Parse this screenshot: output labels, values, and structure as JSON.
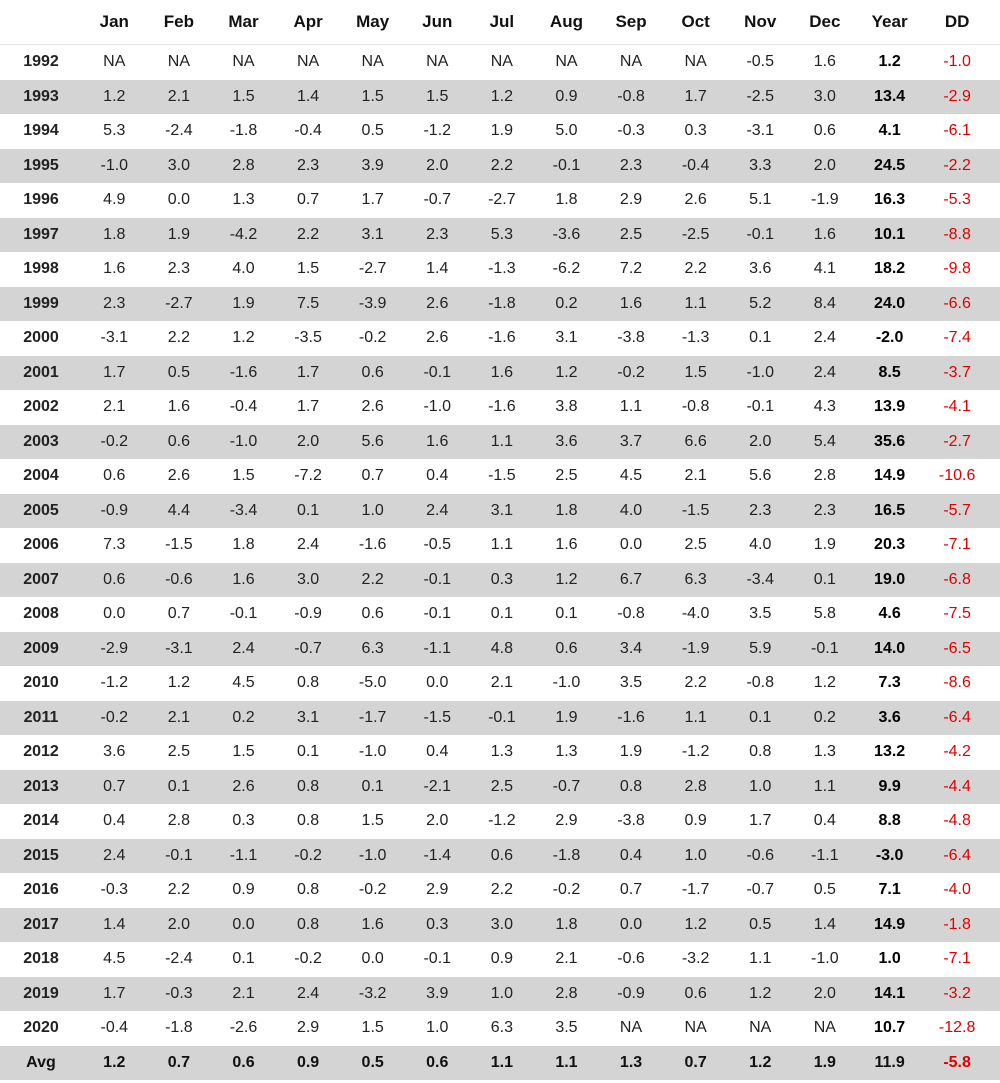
{
  "columns": [
    "",
    "Jan",
    "Feb",
    "Mar",
    "Apr",
    "May",
    "Jun",
    "Jul",
    "Aug",
    "Sep",
    "Oct",
    "Nov",
    "Dec",
    "Year",
    "DD"
  ],
  "rows": [
    {
      "label": "1992",
      "months": [
        "NA",
        "NA",
        "NA",
        "NA",
        "NA",
        "NA",
        "NA",
        "NA",
        "NA",
        "NA",
        "-0.5",
        "1.6"
      ],
      "year": "1.2",
      "dd": "-1.0"
    },
    {
      "label": "1993",
      "months": [
        "1.2",
        "2.1",
        "1.5",
        "1.4",
        "1.5",
        "1.5",
        "1.2",
        "0.9",
        "-0.8",
        "1.7",
        "-2.5",
        "3.0"
      ],
      "year": "13.4",
      "dd": "-2.9"
    },
    {
      "label": "1994",
      "months": [
        "5.3",
        "-2.4",
        "-1.8",
        "-0.4",
        "0.5",
        "-1.2",
        "1.9",
        "5.0",
        "-0.3",
        "0.3",
        "-3.1",
        "0.6"
      ],
      "year": "4.1",
      "dd": "-6.1"
    },
    {
      "label": "1995",
      "months": [
        "-1.0",
        "3.0",
        "2.8",
        "2.3",
        "3.9",
        "2.0",
        "2.2",
        "-0.1",
        "2.3",
        "-0.4",
        "3.3",
        "2.0"
      ],
      "year": "24.5",
      "dd": "-2.2"
    },
    {
      "label": "1996",
      "months": [
        "4.9",
        "0.0",
        "1.3",
        "0.7",
        "1.7",
        "-0.7",
        "-2.7",
        "1.8",
        "2.9",
        "2.6",
        "5.1",
        "-1.9"
      ],
      "year": "16.3",
      "dd": "-5.3"
    },
    {
      "label": "1997",
      "months": [
        "1.8",
        "1.9",
        "-4.2",
        "2.2",
        "3.1",
        "2.3",
        "5.3",
        "-3.6",
        "2.5",
        "-2.5",
        "-0.1",
        "1.6"
      ],
      "year": "10.1",
      "dd": "-8.8"
    },
    {
      "label": "1998",
      "months": [
        "1.6",
        "2.3",
        "4.0",
        "1.5",
        "-2.7",
        "1.4",
        "-1.3",
        "-6.2",
        "7.2",
        "2.2",
        "3.6",
        "4.1"
      ],
      "year": "18.2",
      "dd": "-9.8"
    },
    {
      "label": "1999",
      "months": [
        "2.3",
        "-2.7",
        "1.9",
        "7.5",
        "-3.9",
        "2.6",
        "-1.8",
        "0.2",
        "1.6",
        "1.1",
        "5.2",
        "8.4"
      ],
      "year": "24.0",
      "dd": "-6.6"
    },
    {
      "label": "2000",
      "months": [
        "-3.1",
        "2.2",
        "1.2",
        "-3.5",
        "-0.2",
        "2.6",
        "-1.6",
        "3.1",
        "-3.8",
        "-1.3",
        "0.1",
        "2.4"
      ],
      "year": "-2.0",
      "dd": "-7.4"
    },
    {
      "label": "2001",
      "months": [
        "1.7",
        "0.5",
        "-1.6",
        "1.7",
        "0.6",
        "-0.1",
        "1.6",
        "1.2",
        "-0.2",
        "1.5",
        "-1.0",
        "2.4"
      ],
      "year": "8.5",
      "dd": "-3.7"
    },
    {
      "label": "2002",
      "months": [
        "2.1",
        "1.6",
        "-0.4",
        "1.7",
        "2.6",
        "-1.0",
        "-1.6",
        "3.8",
        "1.1",
        "-0.8",
        "-0.1",
        "4.3"
      ],
      "year": "13.9",
      "dd": "-4.1"
    },
    {
      "label": "2003",
      "months": [
        "-0.2",
        "0.6",
        "-1.0",
        "2.0",
        "5.6",
        "1.6",
        "1.1",
        "3.6",
        "3.7",
        "6.6",
        "2.0",
        "5.4"
      ],
      "year": "35.6",
      "dd": "-2.7"
    },
    {
      "label": "2004",
      "months": [
        "0.6",
        "2.6",
        "1.5",
        "-7.2",
        "0.7",
        "0.4",
        "-1.5",
        "2.5",
        "4.5",
        "2.1",
        "5.6",
        "2.8"
      ],
      "year": "14.9",
      "dd": "-10.6"
    },
    {
      "label": "2005",
      "months": [
        "-0.9",
        "4.4",
        "-3.4",
        "0.1",
        "1.0",
        "2.4",
        "3.1",
        "1.8",
        "4.0",
        "-1.5",
        "2.3",
        "2.3"
      ],
      "year": "16.5",
      "dd": "-5.7"
    },
    {
      "label": "2006",
      "months": [
        "7.3",
        "-1.5",
        "1.8",
        "2.4",
        "-1.6",
        "-0.5",
        "1.1",
        "1.6",
        "0.0",
        "2.5",
        "4.0",
        "1.9"
      ],
      "year": "20.3",
      "dd": "-7.1"
    },
    {
      "label": "2007",
      "months": [
        "0.6",
        "-0.6",
        "1.6",
        "3.0",
        "2.2",
        "-0.1",
        "0.3",
        "1.2",
        "6.7",
        "6.3",
        "-3.4",
        "0.1"
      ],
      "year": "19.0",
      "dd": "-6.8"
    },
    {
      "label": "2008",
      "months": [
        "0.0",
        "0.7",
        "-0.1",
        "-0.9",
        "0.6",
        "-0.1",
        "0.1",
        "0.1",
        "-0.8",
        "-4.0",
        "3.5",
        "5.8"
      ],
      "year": "4.6",
      "dd": "-7.5"
    },
    {
      "label": "2009",
      "months": [
        "-2.9",
        "-3.1",
        "2.4",
        "-0.7",
        "6.3",
        "-1.1",
        "4.8",
        "0.6",
        "3.4",
        "-1.9",
        "5.9",
        "-0.1"
      ],
      "year": "14.0",
      "dd": "-6.5"
    },
    {
      "label": "2010",
      "months": [
        "-1.2",
        "1.2",
        "4.5",
        "0.8",
        "-5.0",
        "0.0",
        "2.1",
        "-1.0",
        "3.5",
        "2.2",
        "-0.8",
        "1.2"
      ],
      "year": "7.3",
      "dd": "-8.6"
    },
    {
      "label": "2011",
      "months": [
        "-0.2",
        "2.1",
        "0.2",
        "3.1",
        "-1.7",
        "-1.5",
        "-0.1",
        "1.9",
        "-1.6",
        "1.1",
        "0.1",
        "0.2"
      ],
      "year": "3.6",
      "dd": "-6.4"
    },
    {
      "label": "2012",
      "months": [
        "3.6",
        "2.5",
        "1.5",
        "0.1",
        "-1.0",
        "0.4",
        "1.3",
        "1.3",
        "1.9",
        "-1.2",
        "0.8",
        "1.3"
      ],
      "year": "13.2",
      "dd": "-4.2"
    },
    {
      "label": "2013",
      "months": [
        "0.7",
        "0.1",
        "2.6",
        "0.8",
        "0.1",
        "-2.1",
        "2.5",
        "-0.7",
        "0.8",
        "2.8",
        "1.0",
        "1.1"
      ],
      "year": "9.9",
      "dd": "-4.4"
    },
    {
      "label": "2014",
      "months": [
        "0.4",
        "2.8",
        "0.3",
        "0.8",
        "1.5",
        "2.0",
        "-1.2",
        "2.9",
        "-3.8",
        "0.9",
        "1.7",
        "0.4"
      ],
      "year": "8.8",
      "dd": "-4.8"
    },
    {
      "label": "2015",
      "months": [
        "2.4",
        "-0.1",
        "-1.1",
        "-0.2",
        "-1.0",
        "-1.4",
        "0.6",
        "-1.8",
        "0.4",
        "1.0",
        "-0.6",
        "-1.1"
      ],
      "year": "-3.0",
      "dd": "-6.4"
    },
    {
      "label": "2016",
      "months": [
        "-0.3",
        "2.2",
        "0.9",
        "0.8",
        "-0.2",
        "2.9",
        "2.2",
        "-0.2",
        "0.7",
        "-1.7",
        "-0.7",
        "0.5"
      ],
      "year": "7.1",
      "dd": "-4.0"
    },
    {
      "label": "2017",
      "months": [
        "1.4",
        "2.0",
        "0.0",
        "0.8",
        "1.6",
        "0.3",
        "3.0",
        "1.8",
        "0.0",
        "1.2",
        "0.5",
        "1.4"
      ],
      "year": "14.9",
      "dd": "-1.8"
    },
    {
      "label": "2018",
      "months": [
        "4.5",
        "-2.4",
        "0.1",
        "-0.2",
        "0.0",
        "-0.1",
        "0.9",
        "2.1",
        "-0.6",
        "-3.2",
        "1.1",
        "-1.0"
      ],
      "year": "1.0",
      "dd": "-7.1"
    },
    {
      "label": "2019",
      "months": [
        "1.7",
        "-0.3",
        "2.1",
        "2.4",
        "-3.2",
        "3.9",
        "1.0",
        "2.8",
        "-0.9",
        "0.6",
        "1.2",
        "2.0"
      ],
      "year": "14.1",
      "dd": "-3.2"
    },
    {
      "label": "2020",
      "months": [
        "-0.4",
        "-1.8",
        "-2.6",
        "2.9",
        "1.5",
        "1.0",
        "6.3",
        "3.5",
        "NA",
        "NA",
        "NA",
        "NA"
      ],
      "year": "10.7",
      "dd": "-12.8"
    }
  ],
  "avg": {
    "label": "Avg",
    "months": [
      "1.2",
      "0.7",
      "0.6",
      "0.9",
      "0.5",
      "0.6",
      "1.1",
      "1.1",
      "1.3",
      "0.7",
      "1.2",
      "1.9"
    ],
    "year": "11.9",
    "dd": "-5.8"
  },
  "colors": {
    "shade": "#d4d4d4",
    "negative_dd": "#e00000",
    "text": "#222222"
  }
}
